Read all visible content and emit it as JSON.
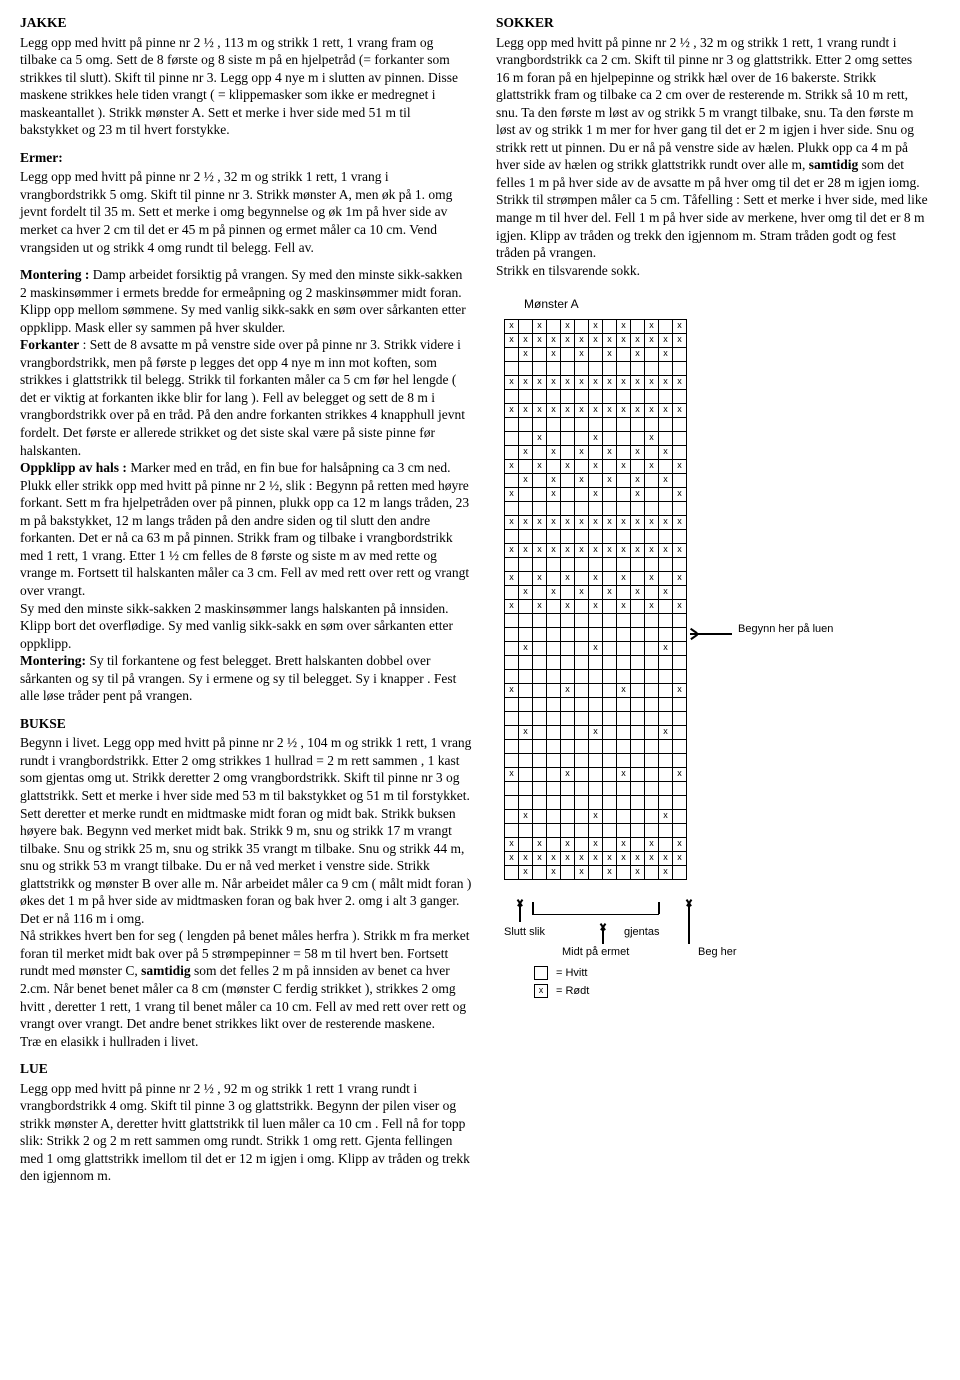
{
  "jakke": {
    "title": "JAKKE",
    "body": "Legg opp med hvitt på pinne nr 2 ½ , 113 m og strikk 1 rett, 1 vrang fram og tilbake ca 5 omg. Sett de 8 første og 8 siste m på en hjelpetråd (= forkanter som strikkes til slutt). Skift til pinne nr 3. Legg opp 4 nye m i slutten av pinnen. Disse maskene strikkes hele tiden vrangt ( = klippemasker som ikke er medregnet i maskeantallet ). Strikk mønster A. Sett et merke i hver side med 51 m til bakstykket og 23 m til hvert forstykke."
  },
  "ermer": {
    "title": "Ermer:",
    "body": "Legg opp med hvitt på pinne nr 2 ½ , 32 m og strikk 1 rett, 1 vrang i vrangbordstrikk 5 omg. Skift til pinne nr 3. Strikk mønster A, men øk på 1. omg jevnt fordelt til 35 m. Sett et merke i omg begynnelse og øk 1m på hver side av merket ca hver 2 cm til det er 45 m på pinnen og ermet måler ca 10 cm. Vend vrangsiden ut og strikk 4 omg rundt til belegg. Fell av."
  },
  "montering1": {
    "lead": "Montering : ",
    "body1": "Damp arbeidet forsiktig på vrangen. Sy med den minste sikk-sakken 2 maskinsømmer i ermets bredde for ermeåpning og 2 maskinsømmer midt foran. Klipp opp mellom sømmene. Sy med vanlig sikk-sakk en søm over sårkanten etter oppklipp. Mask eller sy sammen på hver skulder.",
    "forkanter_lead": "Forkanter",
    "forkanter_body": " : Sett de 8 avsatte m på venstre side over på pinne nr 3. Strikk videre i vrangbordstrikk, men på første p legges det opp 4 nye m inn mot koften, som strikkes i glattstrikk til belegg. Strikk til forkanten måler ca 5 cm før hel lengde ( det er viktig at forkanten ikke blir for lang ). Fell av belegget og sett de 8 m i vrangbordstrikk over på en tråd. På den andre forkanten strikkes 4 knapphull jevnt fordelt. Det første er allerede strikket og det siste skal være på siste pinne før halskanten.",
    "oppklipp_lead": "Oppklipp av hals : ",
    "oppklipp_body": "Marker med en tråd, en fin bue for halsåpning ca 3 cm ned. Plukk eller strikk opp med hvitt på pinne nr 2 ½, slik : Begynn på retten med høyre forkant. Sett m fra hjelpetråden over på pinnen, plukk opp ca 12 m langs tråden, 23 m på bakstykket, 12 m langs tråden på den andre siden og til slutt den andre forkanten. Det er nå ca 63 m på pinnen. Strikk fram og tilbake i vrangbordstrikk med 1 rett, 1 vrang. Etter 1 ½ cm felles de 8 første og siste m av med rette og vrange m. Fortsett til halskanten måler ca 3 cm. Fell av med rett over rett og vrangt over vrangt.",
    "body2": "Sy med den minste sikk-sakken 2 maskinsømmer langs halskanten på innsiden. Klipp bort det overflødige. Sy med vanlig sikk-sakk en søm over sårkanten etter oppklipp.",
    "montering2_lead": "Montering: ",
    "montering2_body": "Sy til forkantene og fest belegget. Brett halskanten dobbel over sårkanten og sy til på vrangen. Sy i ermene og sy til belegget. Sy i knapper . Fest alle løse tråder pent på vrangen."
  },
  "bukse": {
    "title": "BUKSE",
    "body": "Begynn i livet. Legg opp med hvitt på pinne nr 2 ½ , 104 m og strikk 1 rett, 1 vrang rundt i vrangbordstrikk. Etter 2 omg strikkes 1 hullrad = 2 m rett sammen , 1 kast som gjentas omg ut. Strikk deretter 2 omg vrangbordstrikk. Skift til pinne nr 3 og glattstrikk. Sett et merke i hver side med 53 m til bakstykket og 51 m til forstykket. Sett deretter et merke rundt en midtmaske midt foran og midt bak. Strikk buksen høyere bak. Begynn ved merket midt bak. Strikk 9 m, snu og strikk 17 m vrangt tilbake. Snu og strikk 25 m, snu og strikk 35 vrangt m tilbake. Snu og strikk 44 m, snu og strikk 53 m vrangt tilbake. Du er nå ved merket i venstre side. Strikk glattstrikk og mønster B over alle m. Når arbeidet måler ca 9 cm ( målt midt foran ) økes det 1 m på hver side av midtmasken foran og bak hver 2. omg i alt 3 ganger. Det er nå 116 m i omg.\nNå strikkes hvert ben for seg ( lengden på benet måles herfra ). Strikk m fra merket foran til merket midt bak over på 5 strømpepinner = 58 m til hvert ben. Fortsett rundt med mønster C, ",
    "samtidig": "samtidig",
    "body2": " som det felles 2 m på innsiden av benet ca hver 2.cm. Når benet benet måler ca 8 cm (mønster C ferdig strikket ), strikkes 2 omg hvitt , deretter 1 rett, 1 vrang til benet måler ca 10 cm. Fell av med rett over rett og vrangt over vrangt. Det andre benet strikkes likt over de resterende maskene.\nTræ en elasikk i hullraden i livet."
  },
  "lue": {
    "title": "LUE",
    "body": "Legg opp med hvitt på pinne nr 2 ½ , 92 m og strikk 1 rett 1 vrang rundt i vrangbordstrikk 4 omg. Skift til pinne 3 og glattstrikk. Begynn der pilen viser og strikk mønster A, deretter hvitt glattstrikk til luen måler ca 10 cm . Fell nå for topp slik: Strikk 2 og 2 m rett sammen omg rundt. Strikk 1 omg rett. Gjenta fellingen med 1 omg glattstrikk imellom til det er 12 m igjen i omg. Klipp av tråden og trekk den igjennom m."
  },
  "sokker": {
    "title": "SOKKER",
    "body": "Legg opp med hvitt på pinne nr 2 ½ , 32 m og strikk 1 rett, 1 vrang rundt i vrangbordstrikk ca 2 cm. Skift til pinne nr 3 og glattstrikk. Etter 2 omg settes 16 m foran på en hjelpepinne og strikk hæl over de 16 bakerste. Strikk glattstrikk fram og tilbake ca 2 cm over de resterende m. Strikk så 10 m rett, snu. Ta den første m løst av og strikk 5 m vrangt tilbake, snu. Ta den første m løst av og strikk 1 m mer for hver gang til det er 2 m igjen i hver side. Snu og strikk rett ut pinnen. Du er nå på venstre side av hælen. Plukk opp ca 4 m på hver side av hælen og strikk glattstrikk rundt over alle m, ",
    "samtidig": "samtidig",
    "body2": " som det felles 1 m på hver side av de avsatte m på hver omg til det er 28 m igjen iomg. Strikk til strømpen måler ca 5 cm. Tåfelling : Sett et merke i hver side, med like mange m til hver del. Fell 1 m på hver side av merkene, hver omg til det er 8 m igjen. Klipp av tråden og trekk den igjennom m. Stram tråden godt og fest tråden på vrangen.\nStrikk en tilsvarende sokk."
  },
  "chart": {
    "title": "Mønster A",
    "cols": 13,
    "grid": [
      "x.x.x.x.x.x.x",
      "xxxxxxxxxxxxx",
      ".x.x.x.x.x.x.",
      ".............",
      "xxxxxxxxxxxxx",
      ".............",
      "xxxxxxxxxxxxx",
      ".............",
      "..x...x...x..",
      ".x.x.x.x.x.x.",
      "x.x.x.x.x.x.x",
      ".x.x.x.x.x.x.",
      "x..x..x..x..x",
      ".............",
      "xxxxxxxxxxxxx",
      ".............",
      "xxxxxxxxxxxxx",
      ".............",
      "x.x.x.x.x.x.x",
      ".x.x.x.x.x.x.",
      "x.x.x.x.x.x.x",
      ".............",
      ".............",
      ".x....x....x.",
      ".............",
      ".............",
      "x...x...x...x",
      ".............",
      ".............",
      ".x....x....x.",
      ".............",
      ".............",
      "x...x...x...x",
      ".............",
      ".............",
      ".x....x....x.",
      ".............",
      "x.x.x.x.x.x.x",
      "xxxxxxxxxxxxx",
      ".x.x.x.x.x.x."
    ],
    "label_begynn": "Begynn her på luen",
    "label_slutt": "Slutt slik",
    "label_gjentas": "gjentas",
    "label_midt": "Midt på ermet",
    "label_beg": "Beg her",
    "legend_hvitt": "= Hvitt",
    "legend_rodt": "= Rødt",
    "cell_size": 14,
    "border_color": "#000000",
    "bg_color": "#ffffff"
  }
}
